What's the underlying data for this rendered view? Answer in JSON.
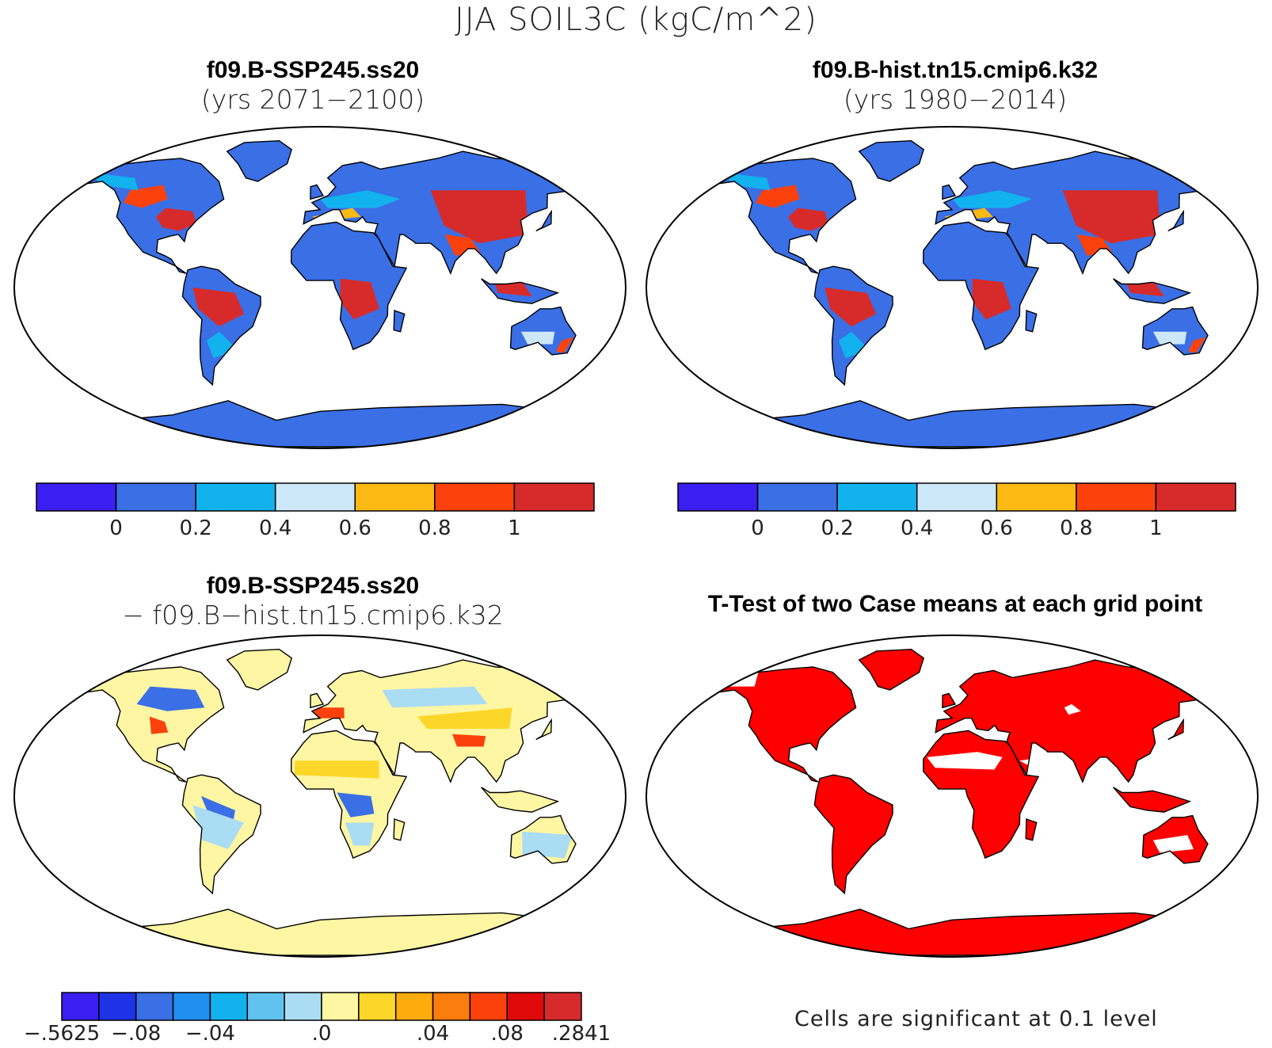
{
  "title": "JJA SOIL3C (kgC/m^2)",
  "panels": [
    {
      "line1": "f09.B-SSP245.ss20",
      "line2": "(yrs 2071−2100)"
    },
    {
      "line1": "f09.B-hist.tn15.cmip6.k32",
      "line2": "(yrs 1980−2014)"
    },
    {
      "line1": "f09.B-SSP245.ss20",
      "line2": "− f09.B−hist.tn15.cmip6.k32"
    },
    {
      "line1": "T-Test of two Case means at each grid point",
      "line2": ""
    }
  ],
  "colorbar_top": {
    "colors": [
      "#3b1ff2",
      "#3a6fe5",
      "#12b2ef",
      "#cce8f8",
      "#fdb914",
      "#fb420d",
      "#d72b2b"
    ],
    "labels": [
      "0",
      "0.2",
      "0.4",
      "0.6",
      "0.8",
      "1"
    ]
  },
  "colorbar_diff": {
    "colors": [
      "#3b1ff2",
      "#1e33e8",
      "#3a6fe5",
      "#1f8ff0",
      "#12b2ef",
      "#61c2f0",
      "#aadcf4",
      "#fef6a2",
      "#fdd62a",
      "#fdab0d",
      "#fb7d0d",
      "#fb420d",
      "#e00a0a",
      "#d72b2b"
    ],
    "labels": [
      "−.5625",
      "−.08",
      "−.04",
      ".0",
      ".04",
      ".08",
      ".2841"
    ]
  },
  "footnote": "Cells are significant at 0.1 level",
  "map_colors": {
    "ocean": "#ffffff",
    "panel1": {
      "land": "#3a6fe5",
      "high": "#d72b2b",
      "mid": "#fb420d",
      "low": "#12b2ef",
      "pale": "#cce8f8",
      "amber": "#fdb914"
    },
    "diff": {
      "land": "#fef6a2",
      "neg": "#3a6fe5",
      "pos": "#fb420d",
      "light": "#aadcf4",
      "gold": "#fdd62a"
    },
    "ttest": {
      "land": "#ff0000",
      "nonsig": "#ffffff"
    }
  }
}
